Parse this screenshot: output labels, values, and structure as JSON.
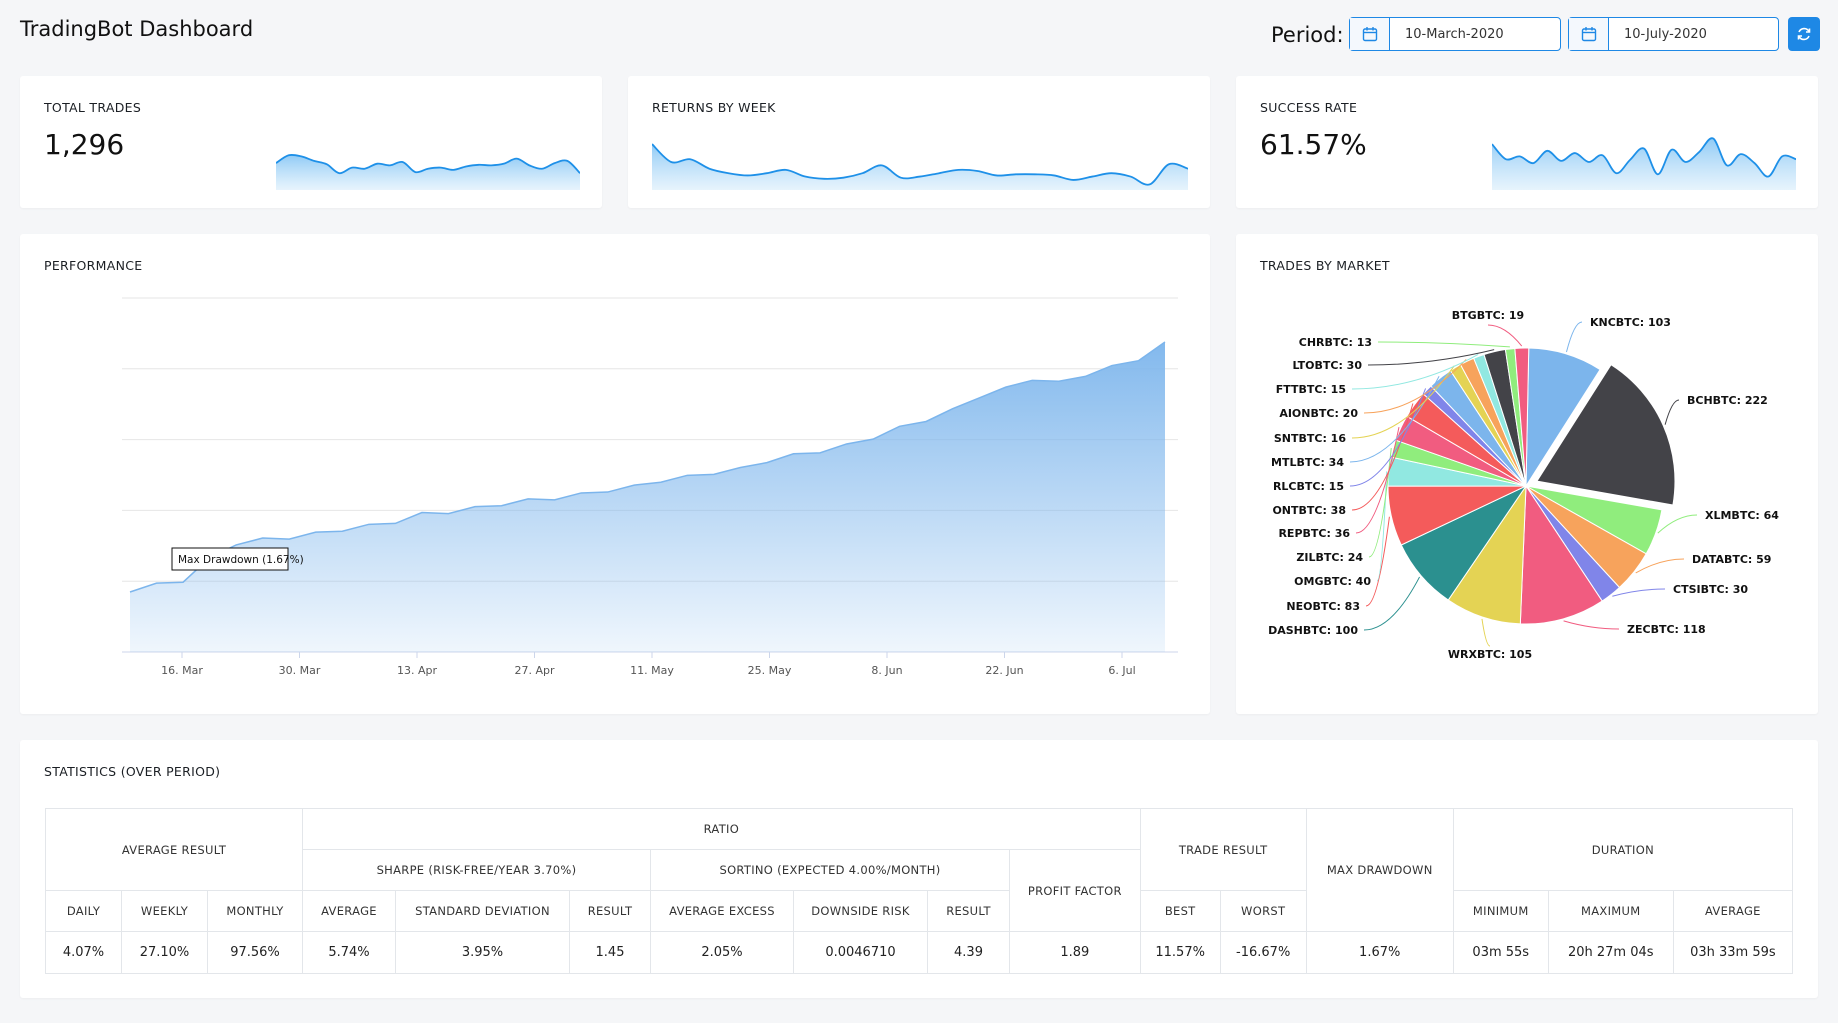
{
  "header": {
    "title": "TradingBot Dashboard",
    "period_label": "Period:",
    "start_date": "10-March-2020",
    "end_date": "10-July-2020",
    "calendar_icon": "calendar-icon",
    "refresh_icon": "refresh-icon"
  },
  "kpis": {
    "total_trades": {
      "label": "TOTAL TRADES",
      "value": "1,296"
    },
    "returns_by_week": {
      "label": "RETURNS BY WEEK"
    },
    "success_rate": {
      "label": "SUCCESS RATE",
      "value": "61.57%"
    }
  },
  "sparklines": {
    "total_trades": [
      48,
      62,
      60,
      52,
      46,
      30,
      40,
      38,
      47,
      44,
      50,
      32,
      38,
      40,
      36,
      42,
      45,
      44,
      47,
      56,
      44,
      38,
      48,
      52,
      30
    ],
    "returns_by_week": [
      82,
      50,
      55,
      38,
      30,
      26,
      30,
      36,
      24,
      20,
      22,
      30,
      44,
      22,
      24,
      30,
      36,
      34,
      26,
      28,
      28,
      26,
      18,
      24,
      30,
      24,
      10,
      46,
      38
    ],
    "success_rate": [
      82,
      55,
      60,
      48,
      70,
      52,
      66,
      50,
      62,
      30,
      54,
      74,
      28,
      72,
      50,
      68,
      92,
      44,
      64,
      48,
      24,
      60,
      55
    ]
  },
  "performance": {
    "title": "PERFORMANCE",
    "tooltip": "Max Drawdown (1.67%)",
    "chart_data": {
      "type": "area",
      "title": "PERFORMANCE",
      "xlabel": "",
      "ylabel": "",
      "x_ticks": [
        "16. Mar",
        "30. Mar",
        "13. Apr",
        "27. Apr",
        "11. May",
        "25. May",
        "8. Jun",
        "22. Jun",
        "6. Jul"
      ],
      "grid": true,
      "legend": "none",
      "series": [
        {
          "values": [
            0.0,
            0.3,
            0.5,
            1.6,
            2.4,
            2.6,
            2.7,
            2.9,
            3.1,
            3.3,
            3.5,
            3.9,
            4.0,
            4.2,
            4.4,
            4.6,
            4.7,
            4.9,
            5.1,
            5.3,
            5.6,
            5.8,
            6.0,
            6.2,
            6.6,
            6.9,
            7.1,
            7.4,
            7.8,
            8.3,
            8.7,
            9.2,
            9.9,
            10.3,
            10.8,
            10.6,
            11.0,
            11.4,
            11.8,
            12.6
          ]
        }
      ]
    }
  },
  "trades_by_market": {
    "title": "TRADES BY MARKET",
    "chart_data": {
      "type": "pie",
      "title": "TRADES BY MARKET",
      "slices": [
        {
          "name": "KNCBTC",
          "value": 103,
          "color": "#7cb5ec"
        },
        {
          "name": "BCHBTC",
          "value": 222,
          "color": "#434348"
        },
        {
          "name": "XLMBTC",
          "value": 64,
          "color": "#90ed7d"
        },
        {
          "name": "DATABTC",
          "value": 59,
          "color": "#f7a35c"
        },
        {
          "name": "CTSIBTC",
          "value": 30,
          "color": "#8085e9"
        },
        {
          "name": "ZECBTC",
          "value": 118,
          "color": "#f15c80"
        },
        {
          "name": "WRXBTC",
          "value": 105,
          "color": "#e4d354"
        },
        {
          "name": "DASHBTC",
          "value": 100,
          "color": "#2b908f"
        },
        {
          "name": "NEOBTC",
          "value": 83,
          "color": "#f45b5b"
        },
        {
          "name": "OMGBTC",
          "value": 40,
          "color": "#91e8e1"
        },
        {
          "name": "ZILBTC",
          "value": 24,
          "color": "#90ed7d"
        },
        {
          "name": "REPBTC",
          "value": 36,
          "color": "#f15c80"
        },
        {
          "name": "ONTBTC",
          "value": 38,
          "color": "#f45b5b"
        },
        {
          "name": "RLCBTC",
          "value": 15,
          "color": "#8085e9"
        },
        {
          "name": "MTLBTC",
          "value": 34,
          "color": "#7cb5ec"
        },
        {
          "name": "SNTBTC",
          "value": 16,
          "color": "#e4d354"
        },
        {
          "name": "AIONBTC",
          "value": 20,
          "color": "#f7a35c"
        },
        {
          "name": "FTTBTC",
          "value": 15,
          "color": "#91e8e1"
        },
        {
          "name": "LTOBTC",
          "value": 30,
          "color": "#434348"
        },
        {
          "name": "CHRBTC",
          "value": 13,
          "color": "#90ed7d"
        },
        {
          "name": "BTGBTC",
          "value": 19,
          "color": "#f15c80"
        }
      ],
      "labels": [
        "KNCBTC: 103",
        "BCHBTC: 222",
        "XLMBTC: 64",
        "DATABTC: 59",
        "CTSIBTC: 30",
        "ZECBTC: 118",
        "WRXBTC: 105",
        "DASHBTC: 100",
        "NEOBTC: 83",
        "OMGBTC: 40",
        "ZILBTC: 24",
        "REPBTC: 36",
        "ONTBTC: 38",
        "RLCBTC: 15",
        "MTLBTC: 34",
        "SNTBTC: 16",
        "AIONBTC: 20",
        "FTTBTC: 15",
        "LTOBTC: 30",
        "CHRBTC: 13",
        "BTGBTC: 19"
      ]
    }
  },
  "statistics": {
    "title": "STATISTICS (OVER PERIOD)",
    "headers": {
      "average_result": "AVERAGE RESULT",
      "ratio": "RATIO",
      "sharpe": "SHARPE (RISK-FREE/YEAR 3.70%)",
      "sortino": "SORTINO (EXPECTED 4.00%/MONTH)",
      "profit_factor": "PROFIT FACTOR",
      "trade_result": "TRADE RESULT",
      "max_drawdown": "MAX DRAWDOWN",
      "duration": "DURATION",
      "daily": "DAILY",
      "weekly": "WEEKLY",
      "monthly": "MONTHLY",
      "average": "AVERAGE",
      "standard_deviation": "STANDARD DEVIATION",
      "result": "RESULT",
      "average_excess": "AVERAGE EXCESS",
      "downside_risk": "DOWNSIDE RISK",
      "best": "BEST",
      "worst": "WORST",
      "minimum": "MINIMUM",
      "maximum": "MAXIMUM"
    },
    "values": {
      "daily": "4.07%",
      "weekly": "27.10%",
      "monthly": "97.56%",
      "sharpe_average": "5.74%",
      "sharpe_std": "3.95%",
      "sharpe_result": "1.45",
      "sortino_avg_excess": "2.05%",
      "sortino_downside": "0.0046710",
      "sortino_result": "4.39",
      "profit_factor": "1.89",
      "best": "11.57%",
      "worst": "-16.67%",
      "max_drawdown": "1.67%",
      "duration_min": "03m 55s",
      "duration_max": "20h 27m 04s",
      "duration_avg": "03h 33m 59s"
    }
  }
}
